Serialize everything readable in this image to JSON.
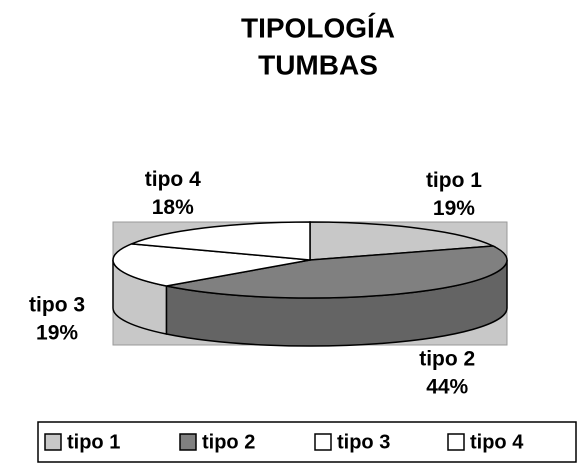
{
  "chart_data": {
    "type": "pie3d",
    "title": [
      "TIPOLOGÍA",
      "TUMBAS"
    ],
    "categories": [
      "tipo 1",
      "tipo 2",
      "tipo 3",
      "tipo 4"
    ],
    "values": [
      19,
      44,
      19,
      18
    ],
    "value_labels": [
      "19%",
      "44%",
      "19%",
      "18%"
    ],
    "colors": [
      "#c8c8c8",
      "#808080",
      "#ffffff",
      "#ffffff"
    ],
    "legend": "bottom"
  }
}
